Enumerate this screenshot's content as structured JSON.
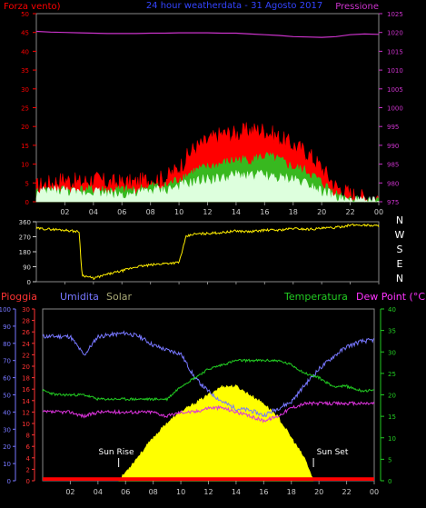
{
  "chart_data": [
    {
      "type": "line",
      "title": "24 hour weatherdata -  31 Agosto 2017",
      "left_axis_label": "Forza vento)",
      "right_axis_label": "Pressione",
      "left_axis": {
        "min": 0,
        "max": 50,
        "ticks": [
          0,
          5,
          10,
          15,
          20,
          25,
          30,
          35,
          40,
          45,
          50
        ]
      },
      "right_axis": {
        "min": 975,
        "max": 1025,
        "ticks": [
          975,
          980,
          985,
          990,
          995,
          1000,
          1005,
          1010,
          1015,
          1020,
          1025
        ]
      },
      "x_ticks": [
        "02",
        "04",
        "06",
        "08",
        "10",
        "12",
        "14",
        "16",
        "18",
        "20",
        "22",
        "00"
      ],
      "hours": [
        0,
        1,
        2,
        3,
        4,
        5,
        6,
        7,
        8,
        9,
        10,
        11,
        12,
        13,
        14,
        15,
        16,
        17,
        18,
        19,
        20,
        21,
        22,
        23,
        24
      ],
      "series": [
        {
          "name": "Pressione",
          "color": "#cc33cc",
          "axis": "right",
          "values": [
            1020.3,
            1020.1,
            1020.0,
            1019.9,
            1019.8,
            1019.7,
            1019.7,
            1019.7,
            1019.8,
            1019.8,
            1019.9,
            1019.9,
            1019.9,
            1019.8,
            1019.8,
            1019.6,
            1019.4,
            1019.2,
            1018.9,
            1018.8,
            1018.7,
            1018.9,
            1019.4,
            1019.6,
            1019.5
          ]
        },
        {
          "color": "#ff0000",
          "axis": "left",
          "values": [
            4,
            5,
            6,
            5,
            6,
            5,
            5,
            5,
            6,
            6,
            9,
            14,
            16,
            18,
            18,
            19,
            19,
            17,
            15,
            13,
            9,
            4,
            2,
            1,
            1
          ]
        },
        {
          "color": "#22cc22",
          "axis": "left",
          "values": [
            2,
            3,
            3,
            3,
            3,
            3,
            3,
            3,
            4,
            4,
            6,
            8,
            9,
            10,
            11,
            11,
            12,
            11,
            9,
            8,
            5,
            2,
            1,
            0,
            0
          ]
        },
        {
          "color": "#ddffdd",
          "axis": "left",
          "values": [
            2,
            3,
            3,
            2,
            3,
            2,
            2,
            2,
            3,
            3,
            4,
            5,
            6,
            6,
            7,
            7,
            7,
            6,
            6,
            5,
            3,
            1,
            0,
            0,
            0
          ]
        }
      ]
    },
    {
      "type": "line",
      "left_axis": {
        "ticks": [
          0,
          90,
          180,
          270,
          360
        ]
      },
      "right_labels": [
        "N",
        "W",
        "S",
        "E",
        "N"
      ],
      "x_ticks": [
        "02",
        "04",
        "06",
        "08",
        "10",
        "12",
        "14",
        "16",
        "18",
        "20",
        "22",
        "00"
      ],
      "hours": [
        0,
        1,
        2,
        3,
        3.2,
        4,
        5,
        6,
        7,
        8,
        9,
        10,
        10.5,
        11,
        12,
        13,
        14,
        15,
        16,
        17,
        18,
        19,
        20,
        21,
        22,
        23,
        24
      ],
      "series": [
        {
          "color": "#ffee00",
          "values": [
            320,
            315,
            310,
            300,
            40,
            20,
            45,
            65,
            90,
            100,
            110,
            115,
            270,
            285,
            290,
            295,
            305,
            300,
            310,
            310,
            320,
            315,
            320,
            325,
            340,
            340,
            335
          ]
        }
      ]
    },
    {
      "type": "area",
      "legend": [
        "Pioggia",
        "Umidita",
        "Solar",
        "Temperatura",
        "Dew Point (°C)"
      ],
      "axis_pioggia": {
        "min": 0,
        "max": 30,
        "ticks": [
          0,
          2,
          4,
          6,
          8,
          10,
          12,
          14,
          16,
          18,
          20,
          22,
          24,
          26,
          28,
          30
        ]
      },
      "axis_umidita": {
        "min": 0,
        "max": 100,
        "ticks": [
          0,
          10,
          20,
          30,
          40,
          50,
          60,
          70,
          80,
          90,
          100
        ]
      },
      "axis_temp": {
        "min": 0,
        "max": 40,
        "ticks": [
          0,
          5,
          10,
          15,
          20,
          25,
          30,
          35,
          40
        ]
      },
      "x_ticks": [
        "02",
        "04",
        "06",
        "08",
        "10",
        "12",
        "14",
        "16",
        "18",
        "20",
        "22",
        "00"
      ],
      "annotations": {
        "sunrise_label": "Sun Rise",
        "sunset_label": "Sun Set"
      },
      "hours": [
        0,
        1,
        2,
        3,
        4,
        5,
        6,
        7,
        8,
        9,
        10,
        11,
        12,
        13,
        14,
        15,
        16,
        17,
        18,
        19,
        20,
        21,
        22,
        23,
        24
      ],
      "series": [
        {
          "name": "Umidita",
          "color": "#7777ff",
          "axis": "umidita",
          "values": [
            84,
            84,
            84,
            73,
            84,
            85,
            86,
            84,
            79,
            76,
            74,
            60,
            52,
            46,
            42,
            41,
            38,
            42,
            46,
            56,
            65,
            72,
            78,
            81,
            82
          ]
        },
        {
          "name": "Temperatura",
          "color": "#22cc22",
          "axis": "temp",
          "values": [
            21,
            20,
            20,
            20,
            19,
            19,
            19,
            19,
            19,
            19,
            22,
            24,
            26,
            27,
            28,
            28,
            28,
            28,
            27,
            25,
            24,
            22,
            22,
            21,
            21
          ]
        },
        {
          "name": "Dew Point (°C)",
          "color": "#dd33dd",
          "axis": "temp",
          "values": [
            16,
            16,
            16,
            15,
            16,
            16,
            16,
            16,
            16,
            15,
            16,
            16,
            17,
            17,
            16,
            15,
            14,
            15,
            17,
            18,
            18,
            18,
            18,
            18,
            18
          ]
        },
        {
          "name": "Solar",
          "color": "#ffff00",
          "axis": "temp",
          "hours": [
            5.5,
            6,
            7,
            8,
            9,
            10,
            11,
            12,
            13,
            14,
            15,
            16,
            17,
            18,
            19,
            19.6
          ],
          "values": [
            0,
            2,
            6,
            10,
            13.5,
            16,
            18,
            20,
            22,
            22,
            20,
            18,
            15,
            10,
            5,
            0
          ]
        }
      ],
      "pioggia_baseline": {
        "color": "#ff0000",
        "value": 0.6
      }
    }
  ]
}
